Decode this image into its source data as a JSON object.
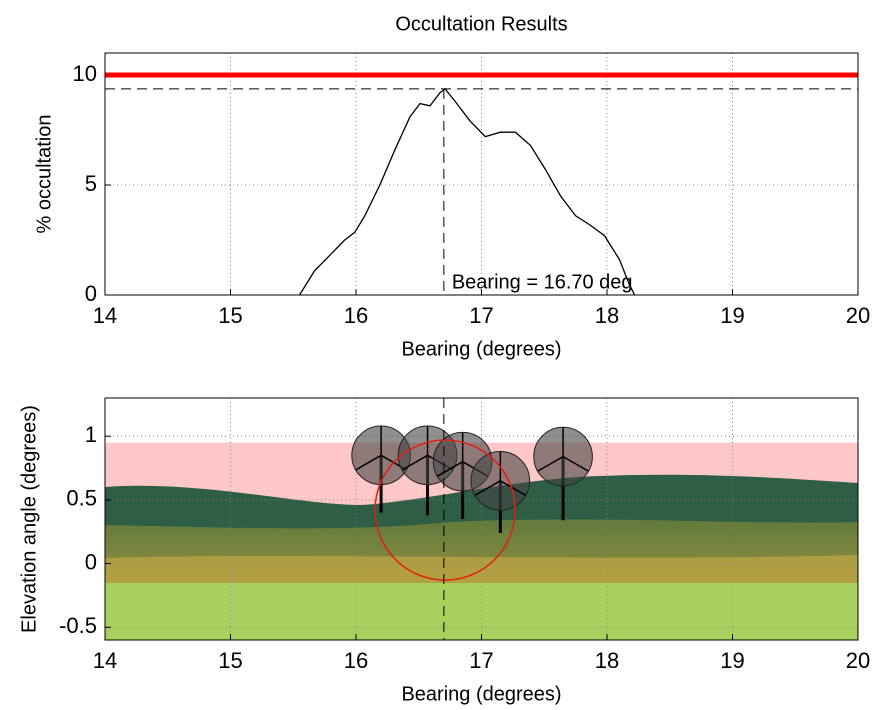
{
  "chart_data": [
    {
      "type": "line",
      "title": "Occultation Results",
      "xlabel": "Bearing (degrees)",
      "ylabel": "% occultation",
      "x": [
        15.55,
        15.67,
        15.79,
        15.91,
        15.99,
        16.07,
        16.19,
        16.31,
        16.43,
        16.51,
        16.59,
        16.67,
        16.71,
        16.79,
        16.91,
        17.03,
        17.15,
        17.27,
        17.39,
        17.51,
        17.63,
        17.75,
        17.86,
        17.98,
        18.1,
        18.18,
        18.22
      ],
      "series": [
        {
          "color": "#000000",
          "values": [
            0,
            1.1,
            1.8,
            2.5,
            2.85,
            3.6,
            5.0,
            6.6,
            8.1,
            8.7,
            8.6,
            9.2,
            9.37,
            8.8,
            7.9,
            7.2,
            7.4,
            7.4,
            6.8,
            5.7,
            4.5,
            3.6,
            3.2,
            2.7,
            1.6,
            0.45,
            0
          ]
        }
      ],
      "threshold": 10,
      "threshold_color": "#ff0000",
      "peak": 9.37,
      "bearing": 16.7,
      "annotation": "Bearing = 16.70 deg",
      "xlim": [
        14,
        20
      ],
      "xticks": [
        14,
        15,
        16,
        17,
        18,
        19,
        20
      ],
      "ylim": [
        0,
        11
      ],
      "yticks": [
        0,
        5,
        10
      ],
      "grid": true
    },
    {
      "type": "turbines",
      "xlabel": "Bearing (degrees)",
      "ylabel": "Elevation angle (degrees)",
      "x": [
        16.2,
        16.57,
        16.85,
        17.15,
        17.65
      ],
      "hub_elevation": [
        0.85,
        0.85,
        0.8,
        0.65,
        0.84
      ],
      "base_elevation": [
        0.4,
        0.38,
        0.35,
        0.24,
        0.34
      ],
      "rotor_radius": 0.23,
      "band_top": 0.95,
      "band_color": "#ffc8c8",
      "bearing": 16.7,
      "view_circle": {
        "x": 16.71,
        "y": 0.42,
        "radius": 0.55,
        "color": "#e02010"
      },
      "xlim": [
        14,
        20
      ],
      "xticks": [
        14,
        15,
        16,
        17,
        18,
        19,
        20
      ],
      "ylim": [
        -0.6,
        1.3
      ],
      "yticks": [
        -0.5,
        0,
        0.5,
        1
      ],
      "grid": true
    }
  ]
}
